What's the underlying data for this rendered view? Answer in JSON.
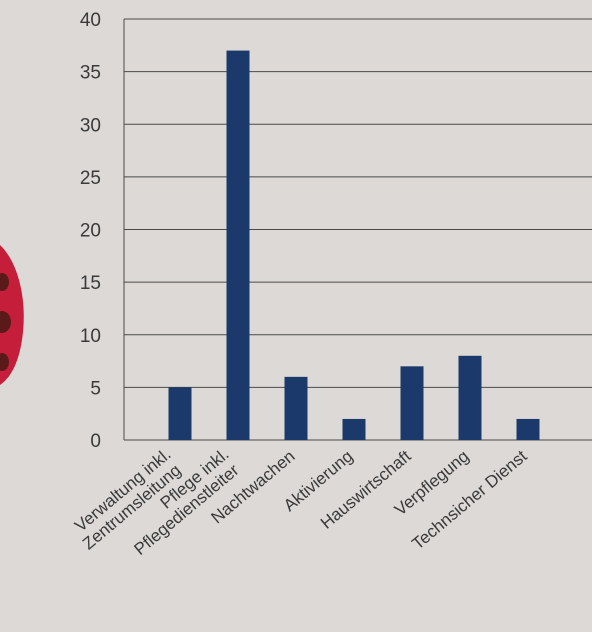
{
  "chart_data": {
    "type": "bar",
    "categories": [
      "Verwaltung inkl. Zentrumsleitung",
      "Pflege inkl. Pflegedienstleiter",
      "Nachtwachen",
      "Aktivierung",
      "Hauswirtschaft",
      "Verpflegung",
      "Technsicher Dienst"
    ],
    "category_lines": [
      [
        "Verwaltung inkl.",
        "Zentrumsleitung"
      ],
      [
        "Pflege inkl.",
        "Pflegedienstleiter"
      ],
      [
        "Nachtwachen"
      ],
      [
        "Aktivierung"
      ],
      [
        "Hauswirtschaft"
      ],
      [
        "Verpflegung"
      ],
      [
        "Technsicher Dienst"
      ]
    ],
    "values": [
      5,
      37,
      6,
      2,
      7,
      8,
      2
    ],
    "yticks": [
      0,
      5,
      10,
      15,
      20,
      25,
      30,
      35,
      40
    ],
    "ylim": [
      0,
      40
    ],
    "grid": true,
    "title": "",
    "xlabel": "",
    "ylabel": "",
    "colors": {
      "bar": "#1b3a6b",
      "grid": "#4a4a4a",
      "background": "#dcd9d6",
      "decoration": "#c41e3a",
      "decoration_dots": "#5a1a1a"
    }
  }
}
